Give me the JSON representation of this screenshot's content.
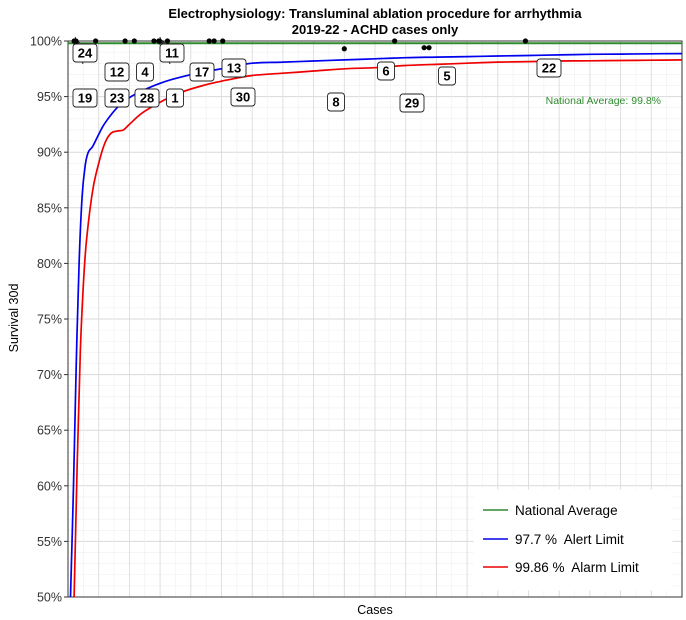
{
  "chart_data": {
    "type": "line",
    "title": "Electrophysiology: Transluminal ablation procedure for arrhythmia",
    "subtitle": "2019-22 - ACHD cases only",
    "xlabel": "Cases",
    "ylabel": "Survival 30d",
    "xlim": [
      0,
      100
    ],
    "ylim": [
      50,
      100
    ],
    "y_ticks": [
      50,
      55,
      60,
      65,
      70,
      75,
      80,
      85,
      90,
      95,
      100
    ],
    "y_tick_labels": [
      "50%",
      "55%",
      "60%",
      "65%",
      "70%",
      "75%",
      "80%",
      "85%",
      "90%",
      "95%",
      "100%"
    ],
    "grid": true,
    "legend_position": "bottom-right",
    "national_average": {
      "name": "National Average",
      "value": 99.8,
      "label": "National Average: 99.8%",
      "color": "#2e8b2e"
    },
    "series": [
      {
        "name": "97.7 %  Alert Limit",
        "color": "#0000ee",
        "x": [
          0.4,
          0.9,
          1.3,
          1.8,
          2.3,
          2.8,
          3.3,
          4,
          5,
          6,
          8,
          10,
          12,
          15,
          18,
          22,
          26,
          30,
          35,
          40,
          45,
          50,
          55,
          60,
          65,
          70,
          75,
          80,
          85,
          90,
          95,
          100
        ],
        "y": [
          50,
          60,
          70,
          80,
          86,
          88.8,
          90,
          90.5,
          91.6,
          92.6,
          94.0,
          94.9,
          95.5,
          96.2,
          96.7,
          97.2,
          97.6,
          98.0,
          98.1,
          98.2,
          98.3,
          98.4,
          98.5,
          98.55,
          98.6,
          98.65,
          98.7,
          98.75,
          98.8,
          98.82,
          98.85,
          98.87
        ]
      },
      {
        "name": "99.86 %  Alarm Limit",
        "color": "#ee0000",
        "x": [
          1.0,
          1.5,
          2.0,
          2.5,
          3.0,
          4,
          5,
          6,
          7,
          8,
          9,
          10,
          12,
          15,
          18,
          22,
          26,
          30,
          35,
          40,
          45,
          50,
          55,
          60,
          65,
          70,
          75,
          80,
          85,
          90,
          95,
          100
        ],
        "y": [
          50,
          62,
          72,
          78,
          82,
          86.5,
          89.0,
          90.8,
          91.7,
          91.9,
          92.0,
          92.5,
          93.5,
          94.5,
          95.3,
          96.0,
          96.5,
          96.9,
          97.1,
          97.3,
          97.5,
          97.6,
          97.8,
          97.9,
          98.0,
          98.1,
          98.15,
          98.2,
          98.22,
          98.25,
          98.27,
          98.3
        ]
      }
    ],
    "points": [
      {
        "label": "24",
        "x": 1.0,
        "y": 100.0
      },
      {
        "label": "19",
        "x": 1.3,
        "y": 100.0
      },
      {
        "label": "12",
        "x": 4.5,
        "y": 100.0
      },
      {
        "label": "23",
        "x": 9.3,
        "y": 100.0
      },
      {
        "label": "4",
        "x": 10.8,
        "y": 100.0
      },
      {
        "label": "28",
        "x": 14.0,
        "y": 100.0
      },
      {
        "label": "11",
        "x": 14.8,
        "y": 100.0
      },
      {
        "label": "1",
        "x": 16.2,
        "y": 100.0
      },
      {
        "label": "17",
        "x": 23.0,
        "y": 100.0
      },
      {
        "label": "30",
        "x": 23.8,
        "y": 100.0
      },
      {
        "label": "13",
        "x": 25.2,
        "y": 100.0
      },
      {
        "label": "8",
        "x": 45.0,
        "y": 99.3
      },
      {
        "label": "6",
        "x": 53.2,
        "y": 100.0
      },
      {
        "label": "29",
        "x": 58.0,
        "y": 99.4
      },
      {
        "label": "5",
        "x": 58.8,
        "y": 99.4
      },
      {
        "label": "22",
        "x": 74.5,
        "y": 100.0
      }
    ]
  }
}
